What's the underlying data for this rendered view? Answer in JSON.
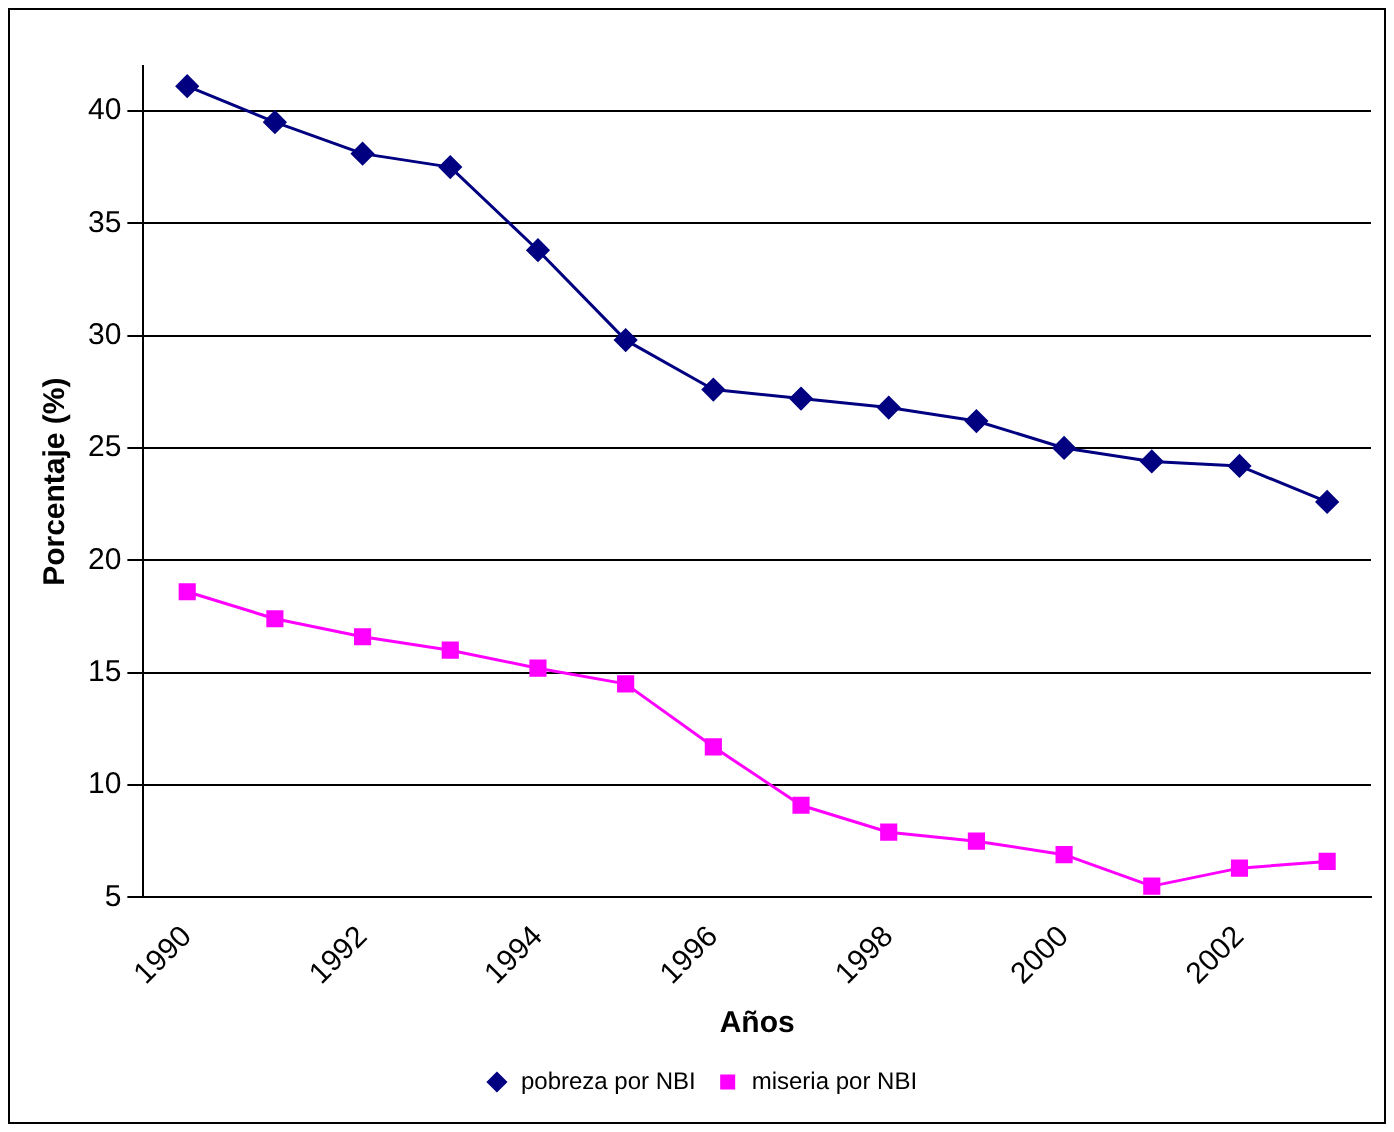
{
  "chart_data": {
    "type": "line",
    "xlabel": "Años",
    "ylabel": "Porcentaje (%)",
    "categories": [
      "1990",
      null,
      "1992",
      null,
      "1994",
      null,
      "1996",
      null,
      "1998",
      null,
      "2000",
      null,
      "2002",
      null
    ],
    "series": [
      {
        "name": "pobreza por NBI",
        "color": "#000080",
        "marker": "diamond",
        "values": [
          41.1,
          39.5,
          38.1,
          37.5,
          33.8,
          29.8,
          27.6,
          27.2,
          26.8,
          26.2,
          25.0,
          24.4,
          24.2,
          22.6
        ]
      },
      {
        "name": "miseria por NBI",
        "color": "#ff00ff",
        "marker": "square",
        "values": [
          18.6,
          17.4,
          16.6,
          16.0,
          15.2,
          14.5,
          11.7,
          9.1,
          7.9,
          7.5,
          6.9,
          5.5,
          6.3,
          6.6
        ]
      }
    ],
    "ylim": [
      5,
      42
    ],
    "yticks": [
      5,
      10,
      15,
      20,
      25,
      30,
      35,
      40
    ],
    "grid": "y",
    "legend": "bottom",
    "line_style": "solid"
  }
}
